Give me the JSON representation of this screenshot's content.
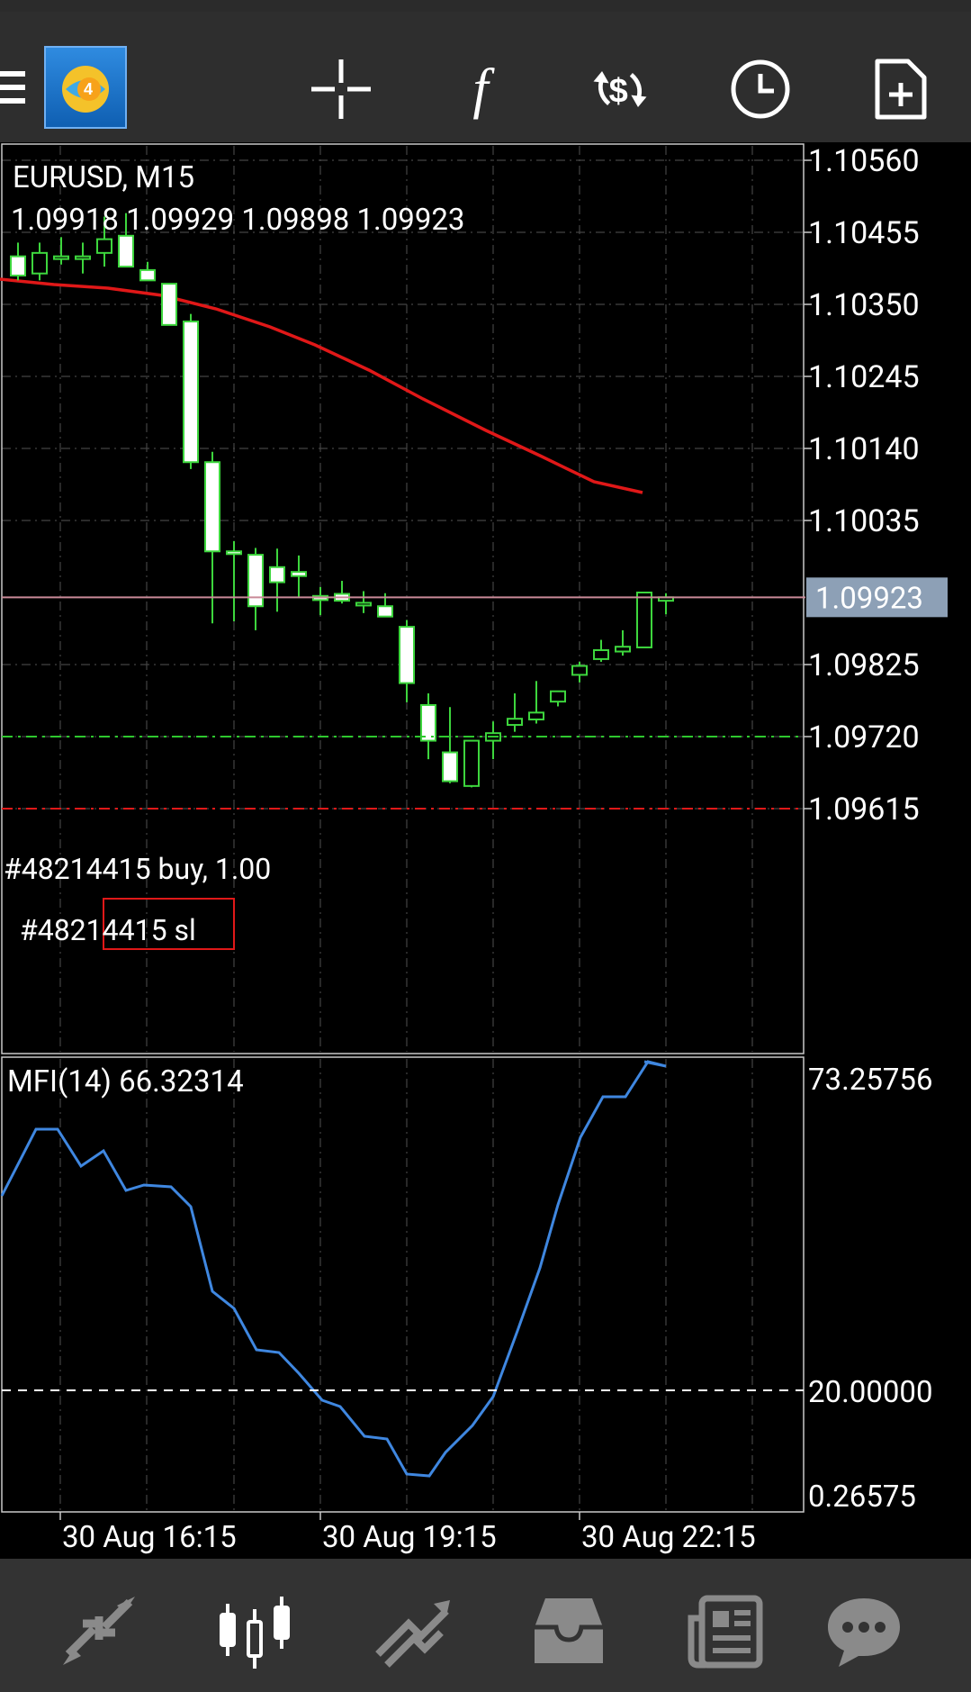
{
  "toolbar": {
    "items": [
      {
        "name": "menu-icon"
      },
      {
        "name": "app-logo"
      },
      {
        "name": "crosshair-icon"
      },
      {
        "name": "indicators-icon",
        "glyph": "f"
      },
      {
        "name": "trade-icon"
      },
      {
        "name": "timeframe-clock-icon"
      },
      {
        "name": "new-order-icon"
      }
    ]
  },
  "main_chart": {
    "symbol_label": "EURUSD, M15",
    "ohlc_label": "1.09918 1.09929 1.09898 1.09923",
    "current_price": "1.09923",
    "order_label": "#48214415 buy, 1.00",
    "sl_label": "#48214415 sl",
    "y_ticks": [
      "1.10560",
      "1.10455",
      "1.10350",
      "1.10245",
      "1.10140",
      "1.10035",
      "1.09825",
      "1.09720",
      "1.09615"
    ],
    "colors": {
      "bull": "#3dd63d",
      "bear_fill": "#ffffff",
      "ma": "#e01818",
      "price_line": "#c98a98",
      "order_line": "#2ec82e",
      "sl_line": "#e01818",
      "grid": "#4a4a4a",
      "price_box": "#8da0b6"
    }
  },
  "indicator": {
    "label": "MFI(14) 66.32314",
    "y_ticks": [
      "73.25756",
      "20.00000",
      "0.26575"
    ],
    "line_color": "#3f87e0"
  },
  "x_axis": {
    "labels": [
      "30 Aug 16:15",
      "30 Aug 19:15",
      "30 Aug 22:15"
    ]
  },
  "bottom_nav": {
    "items": [
      {
        "name": "quotes-tab-icon"
      },
      {
        "name": "chart-tab-icon",
        "active": true
      },
      {
        "name": "trade-tab-icon"
      },
      {
        "name": "history-tab-icon"
      },
      {
        "name": "news-tab-icon"
      },
      {
        "name": "messages-tab-icon"
      }
    ]
  },
  "chart_data": {
    "type": "candlestick",
    "title": "EURUSD, M15",
    "timeframe": "M15",
    "ylim": [
      1.0955,
      1.1068
    ],
    "candles": [
      {
        "o": 1.09967,
        "h": 1.09994,
        "l": 1.09902,
        "c": 1.09945
      },
      {
        "o": 1.0996,
        "h": 1.09984,
        "l": 1.09922,
        "c": 1.09954
      },
      {
        "o": 1.09925,
        "h": 1.09938,
        "l": 1.09897,
        "c": 1.09919
      },
      {
        "o": 1.09928,
        "h": 1.09947,
        "l": 1.09914,
        "c": 1.09918
      },
      {
        "o": 1.09915,
        "h": 1.09932,
        "l": 1.099,
        "c": 1.09915
      },
      {
        "o": 1.0991,
        "h": 1.09929,
        "l": 1.09905,
        "c": 1.09895
      },
      {
        "o": 1.0988,
        "h": 1.0989,
        "l": 1.0977,
        "c": 1.09798
      },
      {
        "o": 1.09766,
        "h": 1.09783,
        "l": 1.09687,
        "c": 1.09714
      },
      {
        "o": 1.09697,
        "h": 1.09763,
        "l": 1.09652,
        "c": 1.09655
      },
      {
        "o": 1.09648,
        "h": 1.09708,
        "l": 1.09646,
        "c": 1.09714
      },
      {
        "o": 1.09714,
        "h": 1.09742,
        "l": 1.09687,
        "c": 1.09725
      },
      {
        "o": 1.09737,
        "h": 1.09783,
        "l": 1.09727,
        "c": 1.09746
      },
      {
        "o": 1.09745,
        "h": 1.09801,
        "l": 1.09739,
        "c": 1.09755
      },
      {
        "o": 1.09771,
        "h": 1.09784,
        "l": 1.09764,
        "c": 1.09786
      },
      {
        "o": 1.0981,
        "h": 1.09829,
        "l": 1.09799,
        "c": 1.09823
      },
      {
        "o": 1.09833,
        "h": 1.09861,
        "l": 1.09829,
        "c": 1.09846
      },
      {
        "o": 1.09844,
        "h": 1.09875,
        "l": 1.09838,
        "c": 1.09851
      },
      {
        "o": 1.0985,
        "h": 1.09923,
        "l": 1.0985,
        "c": 1.0993
      },
      {
        "o": 1.09918,
        "h": 1.09929,
        "l": 1.09898,
        "c": 1.09923
      }
    ],
    "early_candles_note": "",
    "levels": {
      "bid": 1.09923,
      "buy_order": 1.0972,
      "stop_loss": 1.09615
    },
    "indicator": {
      "name": "MFI(14)",
      "value": 66.32314,
      "ylim": [
        0.26575,
        73.25756
      ],
      "level": 20.0
    }
  }
}
